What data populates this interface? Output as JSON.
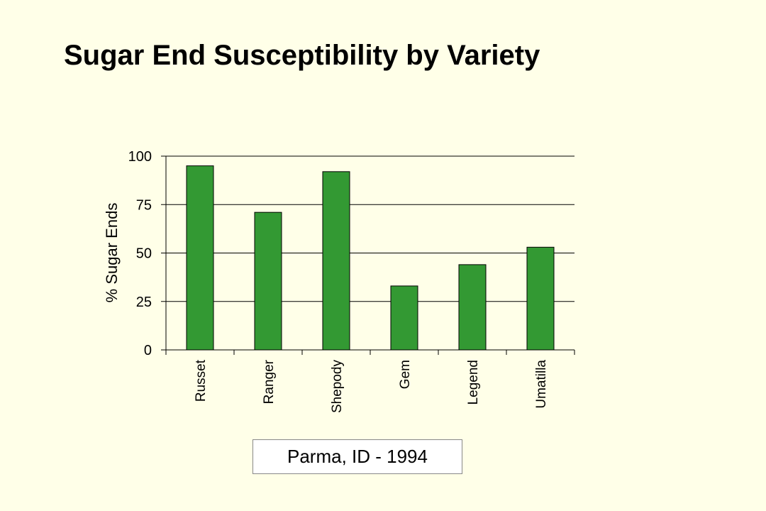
{
  "title": "Sugar End Susceptibility by Variety",
  "caption": "Parma, ID - 1994",
  "colors": {
    "background": "#ffffe8",
    "bar_fill": "#339933",
    "bar_stroke": "#000000",
    "grid": "#000000"
  },
  "chart_data": {
    "type": "bar",
    "categories": [
      "Russet",
      "Ranger",
      "Shepody",
      "Gem",
      "Legend",
      "Umatilla"
    ],
    "values": [
      95,
      71,
      92,
      33,
      44,
      53
    ],
    "ylabel": "% Sugar Ends",
    "xlabel": "",
    "ylim": [
      0,
      100
    ],
    "yticks": [
      0,
      25,
      50,
      75,
      100
    ],
    "grid": true,
    "legend": false
  }
}
